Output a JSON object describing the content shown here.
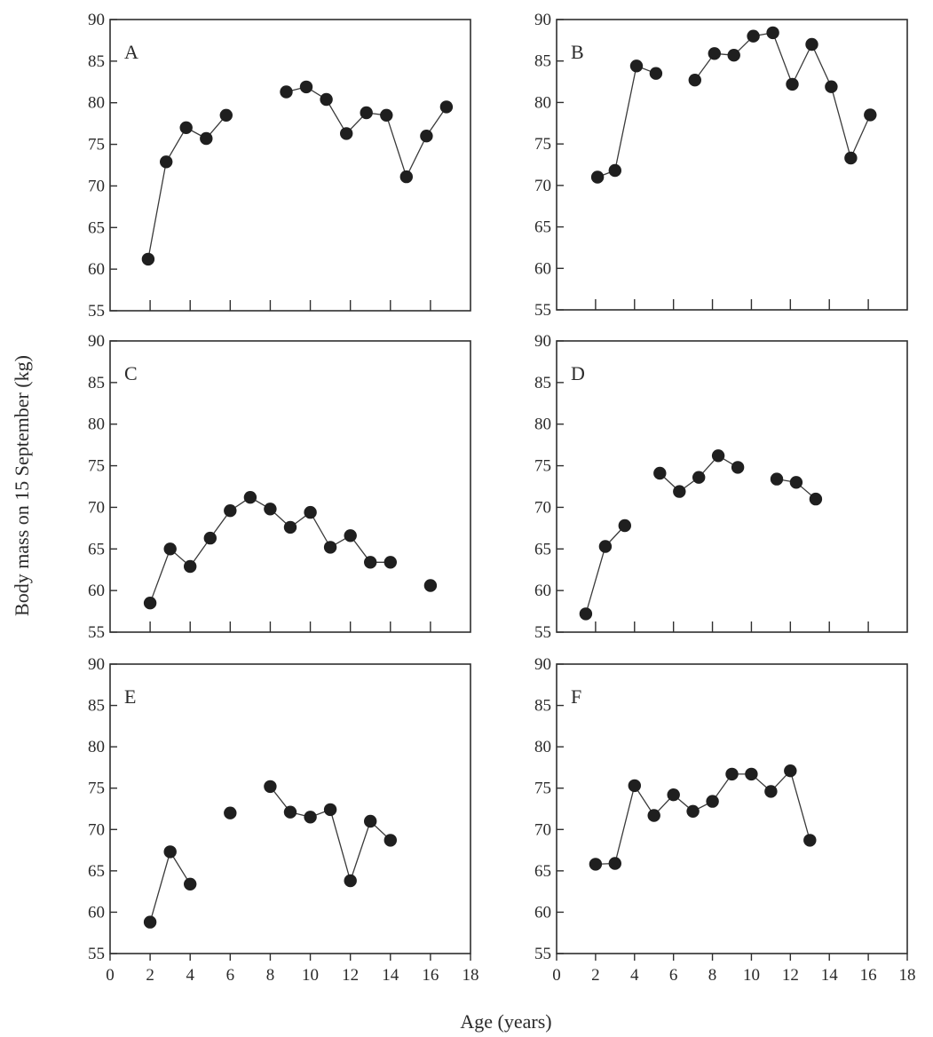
{
  "chart_data": {
    "type": "line",
    "ylabel": "Body mass on 15 September (kg)",
    "xlabel": "Age (years)",
    "xlim": [
      0,
      18
    ],
    "ylim": [
      55,
      90
    ],
    "x_ticks": [
      "0",
      "2",
      "4",
      "6",
      "8",
      "10",
      "12",
      "14",
      "16",
      "18"
    ],
    "y_ticks": [
      "55",
      "60",
      "65",
      "70",
      "75",
      "80",
      "85",
      "90"
    ],
    "grid": false,
    "legend": "none",
    "marker_color": "#1f1f1f",
    "panels": [
      {
        "label": "A",
        "segments": [
          [
            [
              1.9,
              61.2
            ],
            [
              2.8,
              72.9
            ],
            [
              3.8,
              77.0
            ],
            [
              4.8,
              75.7
            ],
            [
              5.8,
              78.5
            ]
          ],
          [
            [
              8.8,
              81.3
            ],
            [
              9.8,
              81.9
            ],
            [
              10.8,
              80.4
            ],
            [
              11.8,
              76.3
            ],
            [
              12.8,
              78.8
            ],
            [
              13.8,
              78.5
            ],
            [
              14.8,
              71.1
            ],
            [
              15.8,
              76.0
            ],
            [
              16.8,
              79.5
            ]
          ]
        ]
      },
      {
        "label": "B",
        "segments": [
          [
            [
              2.1,
              71.0
            ],
            [
              3.0,
              71.8
            ],
            [
              4.1,
              84.4
            ],
            [
              5.1,
              83.5
            ]
          ],
          [
            [
              7.1,
              82.7
            ],
            [
              8.1,
              85.9
            ],
            [
              9.1,
              85.7
            ],
            [
              10.1,
              88.0
            ],
            [
              11.1,
              88.4
            ],
            [
              12.1,
              82.2
            ],
            [
              13.1,
              87.0
            ],
            [
              14.1,
              81.9
            ],
            [
              15.1,
              73.3
            ],
            [
              16.1,
              78.5
            ]
          ]
        ]
      },
      {
        "label": "C",
        "segments": [
          [
            [
              2.0,
              58.5
            ],
            [
              3.0,
              65.0
            ],
            [
              4.0,
              62.9
            ],
            [
              5.0,
              66.3
            ],
            [
              6.0,
              69.6
            ],
            [
              7.0,
              71.2
            ],
            [
              8.0,
              69.8
            ],
            [
              9.0,
              67.6
            ],
            [
              10.0,
              69.4
            ],
            [
              11.0,
              65.2
            ],
            [
              12.0,
              66.6
            ],
            [
              13.0,
              63.4
            ],
            [
              14.0,
              63.4
            ]
          ],
          [
            [
              16.0,
              60.6
            ]
          ]
        ]
      },
      {
        "label": "D",
        "segments": [
          [
            [
              1.5,
              57.2
            ],
            [
              2.5,
              65.3
            ],
            [
              3.5,
              67.8
            ]
          ],
          [
            [
              5.3,
              74.1
            ],
            [
              6.3,
              71.9
            ],
            [
              7.3,
              73.6
            ],
            [
              8.3,
              76.2
            ],
            [
              9.3,
              74.8
            ]
          ],
          [
            [
              11.3,
              73.4
            ],
            [
              12.3,
              73.0
            ],
            [
              13.3,
              71.0
            ]
          ]
        ]
      },
      {
        "label": "E",
        "segments": [
          [
            [
              2.0,
              58.8
            ],
            [
              3.0,
              67.3
            ],
            [
              4.0,
              63.4
            ]
          ],
          [
            [
              6.0,
              72.0
            ]
          ],
          [
            [
              8.0,
              75.2
            ],
            [
              9.0,
              72.1
            ],
            [
              10.0,
              71.5
            ],
            [
              11.0,
              72.4
            ],
            [
              12.0,
              63.8
            ],
            [
              13.0,
              71.0
            ],
            [
              14.0,
              68.7
            ]
          ]
        ]
      },
      {
        "label": "F",
        "segments": [
          [
            [
              2.0,
              65.8
            ],
            [
              3.0,
              65.9
            ],
            [
              4.0,
              75.3
            ],
            [
              5.0,
              71.7
            ],
            [
              6.0,
              74.2
            ],
            [
              7.0,
              72.2
            ],
            [
              8.0,
              73.4
            ],
            [
              9.0,
              76.7
            ],
            [
              10.0,
              76.7
            ],
            [
              11.0,
              74.6
            ],
            [
              12.0,
              77.1
            ],
            [
              13.0,
              68.7
            ]
          ]
        ]
      }
    ]
  }
}
